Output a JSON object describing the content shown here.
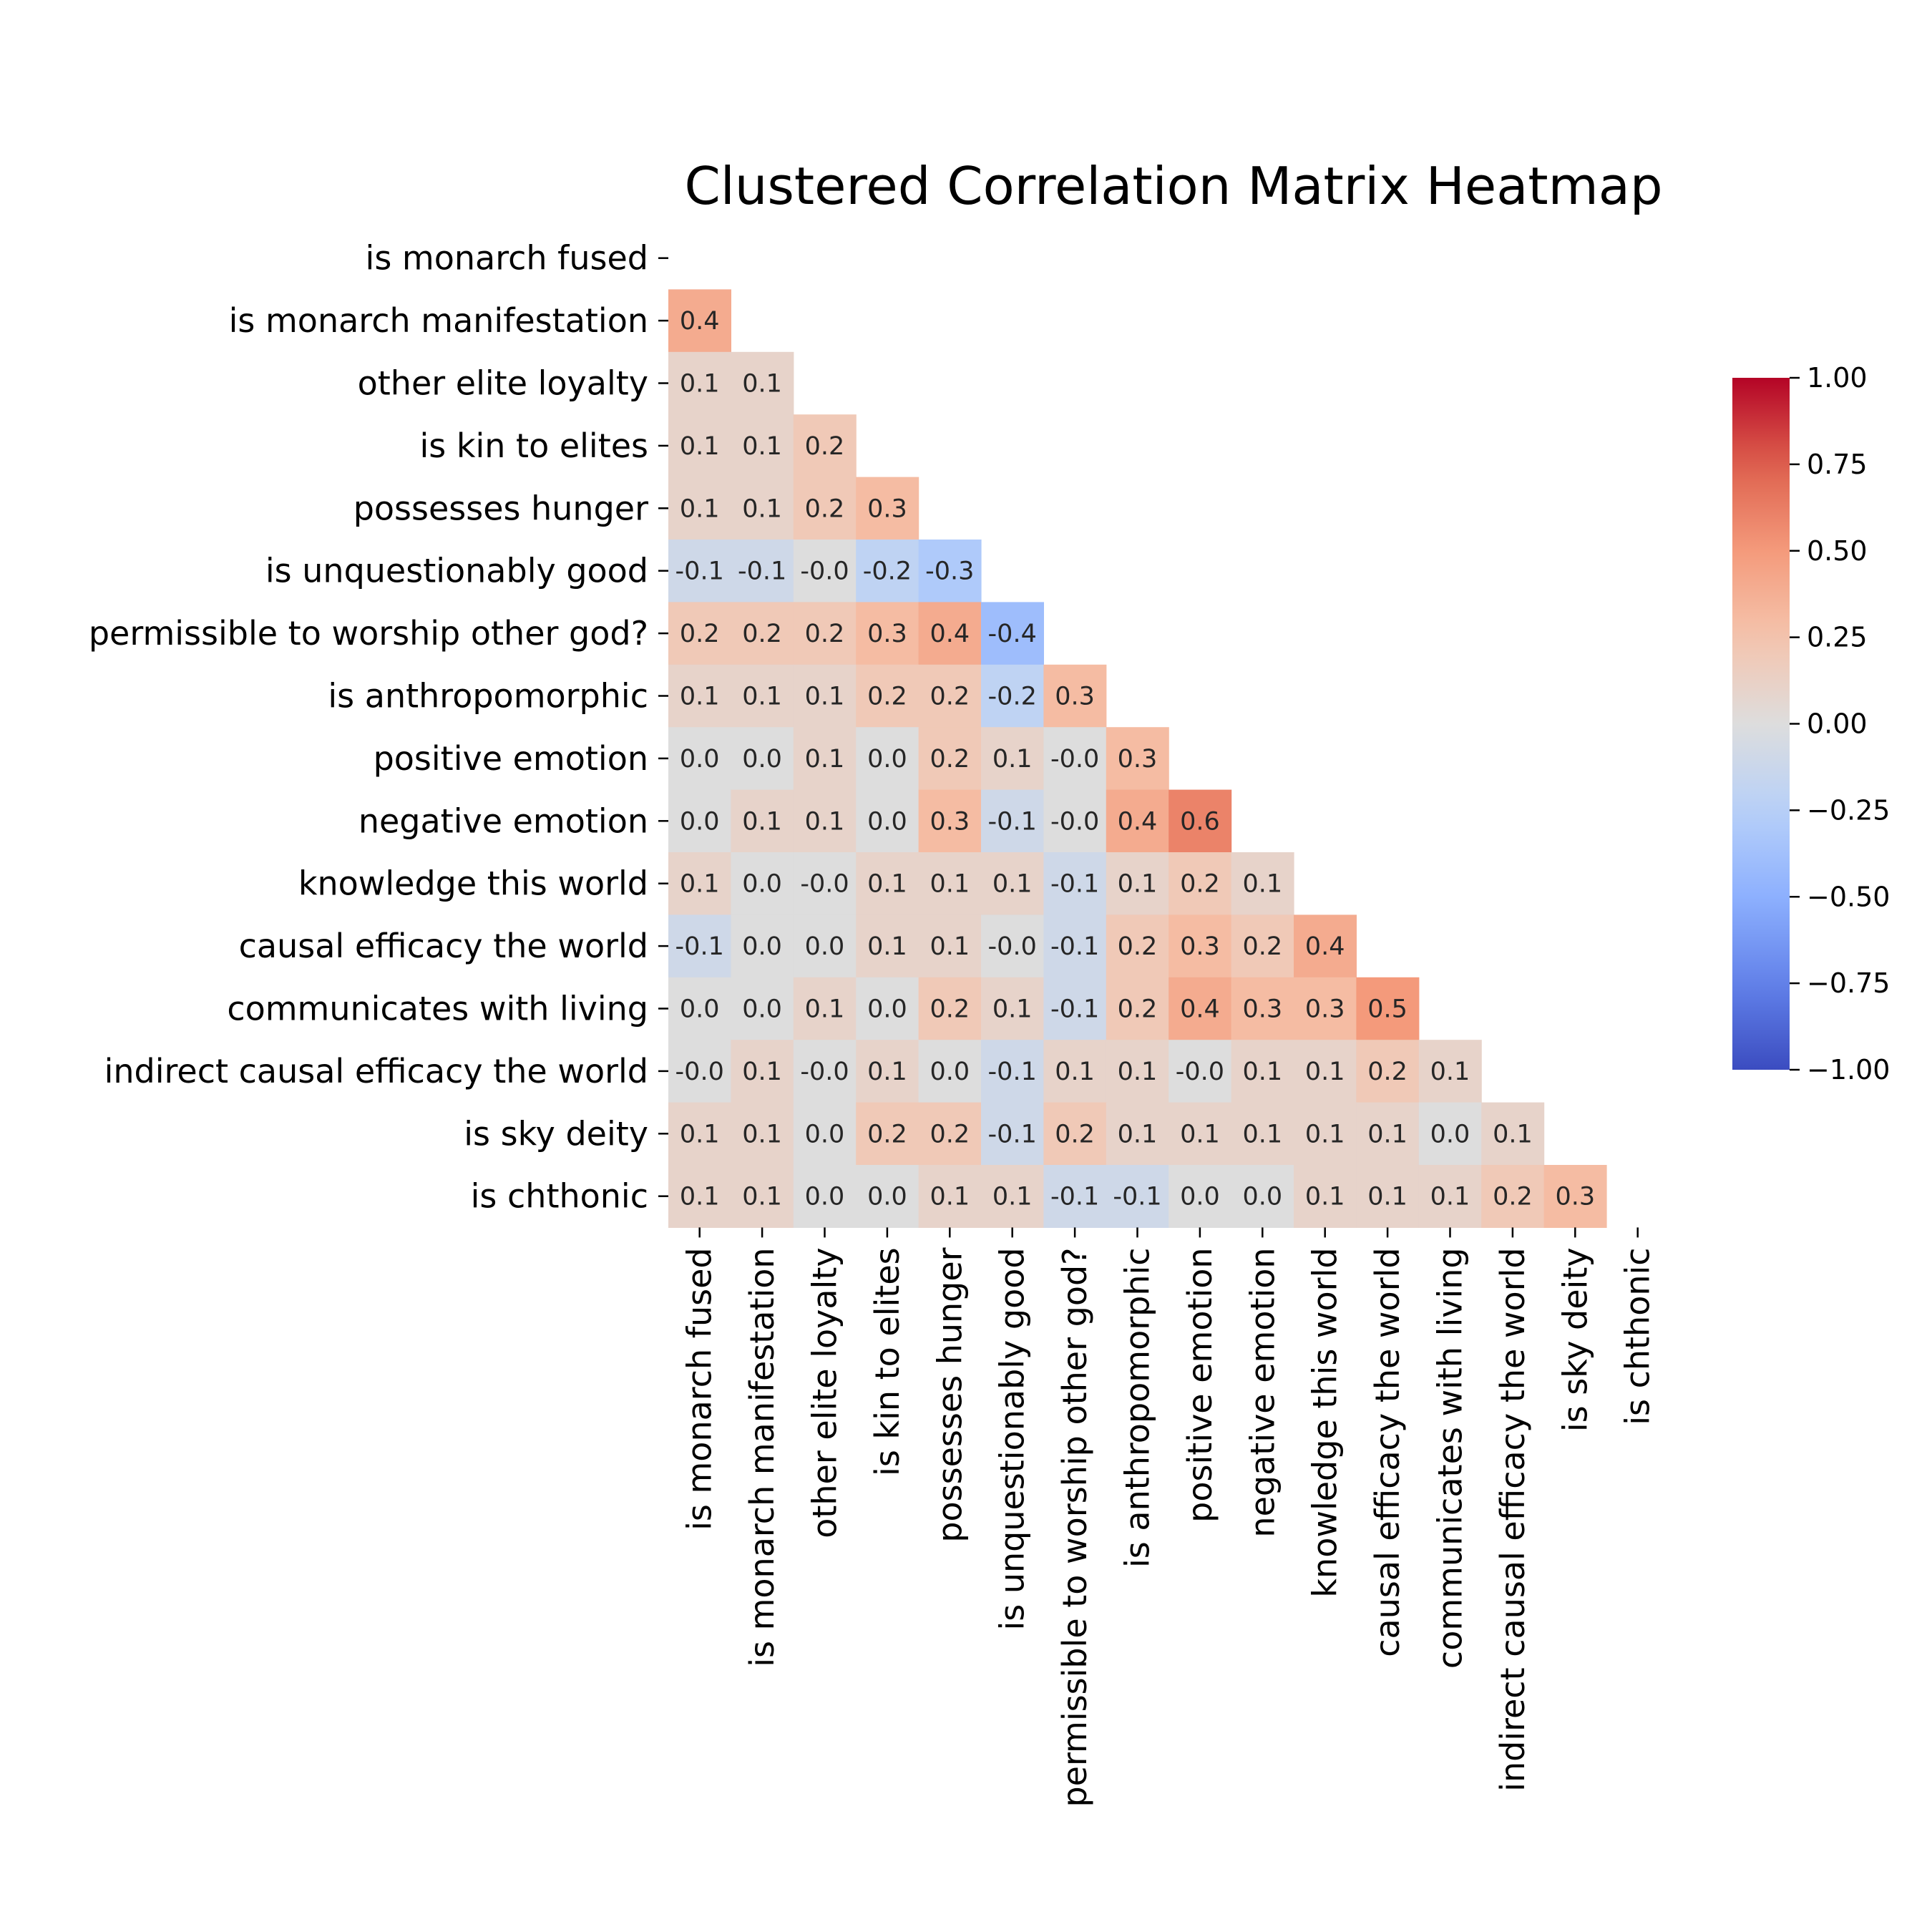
{
  "chart_data": {
    "type": "heatmap",
    "title": "Clustered Correlation Matrix Heatmap",
    "variables": [
      "is monarch fused",
      "is monarch manifestation",
      "other elite loyalty",
      "is kin to elites",
      "possesses hunger",
      "is unquestionably good",
      "permissible to worship other god?",
      "is anthropomorphic",
      "positive emotion",
      "negative emotion",
      "knowledge this world",
      "causal efficacy the world",
      "communicates with living",
      "indirect causal efficacy the world",
      "is sky deity",
      "is chthonic"
    ],
    "mask": "upper-triangle-including-diagonal",
    "values": [
      [],
      [
        0.4
      ],
      [
        0.1,
        0.1
      ],
      [
        0.1,
        0.1,
        0.2
      ],
      [
        0.1,
        0.1,
        0.2,
        0.3
      ],
      [
        -0.1,
        -0.1,
        -0.0,
        -0.2,
        -0.3
      ],
      [
        0.2,
        0.2,
        0.2,
        0.3,
        0.4,
        -0.4
      ],
      [
        0.1,
        0.1,
        0.1,
        0.2,
        0.2,
        -0.2,
        0.3
      ],
      [
        0.0,
        0.0,
        0.1,
        0.0,
        0.2,
        0.1,
        -0.0,
        0.3
      ],
      [
        0.0,
        0.1,
        0.1,
        0.0,
        0.3,
        -0.1,
        -0.0,
        0.4,
        0.6
      ],
      [
        0.1,
        0.0,
        -0.0,
        0.1,
        0.1,
        0.1,
        -0.1,
        0.1,
        0.2,
        0.1
      ],
      [
        -0.1,
        0.0,
        0.0,
        0.1,
        0.1,
        -0.0,
        -0.1,
        0.2,
        0.3,
        0.2,
        0.4
      ],
      [
        0.0,
        0.0,
        0.1,
        0.0,
        0.2,
        0.1,
        -0.1,
        0.2,
        0.4,
        0.3,
        0.3,
        0.5
      ],
      [
        -0.0,
        0.1,
        -0.0,
        0.1,
        0.0,
        -0.1,
        0.1,
        0.1,
        -0.0,
        0.1,
        0.1,
        0.2,
        0.1
      ],
      [
        0.1,
        0.1,
        0.0,
        0.2,
        0.2,
        -0.1,
        0.2,
        0.1,
        0.1,
        0.1,
        0.1,
        0.1,
        0.0,
        0.1
      ],
      [
        0.1,
        0.1,
        0.0,
        0.0,
        0.1,
        0.1,
        -0.1,
        -0.1,
        0.0,
        0.0,
        0.1,
        0.1,
        0.1,
        0.2,
        0.3
      ]
    ],
    "colormap": "coolwarm",
    "vmin": -1.0,
    "vmax": 1.0,
    "colorbar_ticks": [
      "1.00",
      "0.75",
      "0.50",
      "0.25",
      "0.00",
      "−0.25",
      "−0.50",
      "−0.75",
      "−1.00"
    ],
    "annotation_format": "0.1f",
    "grid": false,
    "colorbar_position": "right"
  }
}
